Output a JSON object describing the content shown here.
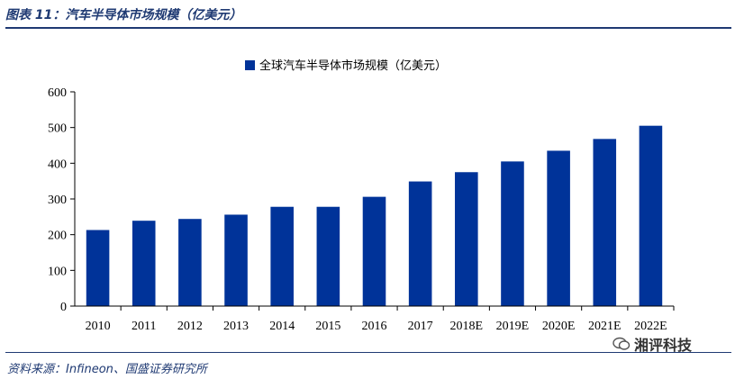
{
  "header": {
    "figure_title": "图表 11：汽车半导体市场规模（亿美元）"
  },
  "footer": {
    "source": "资料来源：Infineon、国盛证券研究所",
    "watermark": "湘评科技",
    "watermark_icon": "wechat-icon"
  },
  "colors": {
    "bar": "#003399",
    "title": "#1f3a73"
  },
  "chart_data": {
    "type": "bar",
    "title": "",
    "xlabel": "",
    "ylabel": "",
    "ylim": [
      0,
      600
    ],
    "yticks": [
      0,
      100,
      200,
      300,
      400,
      500,
      600
    ],
    "legend": "top-center",
    "grid": false,
    "categories": [
      "2010",
      "2011",
      "2012",
      "2013",
      "2014",
      "2015",
      "2016",
      "2017",
      "2018E",
      "2019E",
      "2020E",
      "2021E",
      "2022E"
    ],
    "series": [
      {
        "name": "全球汽车半导体市场规模（亿美元）",
        "values": [
          213,
          239,
          244,
          256,
          278,
          278,
          306,
          349,
          375,
          405,
          435,
          468,
          505
        ]
      }
    ]
  }
}
